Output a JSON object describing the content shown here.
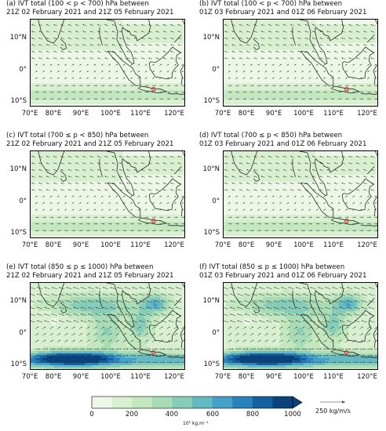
{
  "panels": [
    {
      "title_line1": "(a) IVT total (100 < p < 700) hPa between",
      "title_line2": "21Z 02 February 2021 and 21Z 05 February 2021",
      "intensity": "low"
    },
    {
      "title_line1": "(b) IVT total (100 < p < 700) hPa between",
      "title_line2": "01Z 03 February 2021 and 01Z 06 February 2021",
      "intensity": "low"
    },
    {
      "title_line1": "(c) IVT total (700 ≤ p < 850) hPa between",
      "title_line2": "21Z 02 February 2021 and 21Z 05 February 2021",
      "intensity": "low"
    },
    {
      "title_line1": "(d) IVT total (700 ≤ p < 850) hPa between",
      "title_line2": "01Z 03 February 2021 and 01Z 06 February 2021",
      "intensity": "low"
    },
    {
      "title_line1": "(e) IVT total (850 ≤ p ≤ 1000) hPa between",
      "title_line2": "21Z 02 February 2021 and 21Z 05 February 2021",
      "intensity": "high"
    },
    {
      "title_line1": "(f) IVT total (850 ≤ p ≤ 1000) hPa between",
      "title_line2": "01Z 03 February 2021 and 01Z 06 February 2021",
      "intensity": "high"
    }
  ],
  "lat_labels": [
    "10°N",
    "0°",
    "10°S"
  ],
  "lon_labels": [
    "70°E",
    "80°E",
    "90°E",
    "100°E",
    "110°E",
    "120°E"
  ],
  "colorbar": {
    "ticks": [
      "0",
      "200",
      "400",
      "600",
      "800",
      "1000"
    ],
    "unit_label": "10⁵ kg.m⁻¹",
    "reference_vector_label": "250 kg/m/s",
    "colors": [
      "#ecf7e6",
      "#d8f0d0",
      "#c3e8bf",
      "#a7dcb6",
      "#86cdb9",
      "#64b9c3",
      "#45a1c9",
      "#2a82bd",
      "#15609f",
      "#0a437c"
    ]
  },
  "marker": {
    "lon": 110.4,
    "lat": -7.0,
    "color": "#e0302a"
  }
}
